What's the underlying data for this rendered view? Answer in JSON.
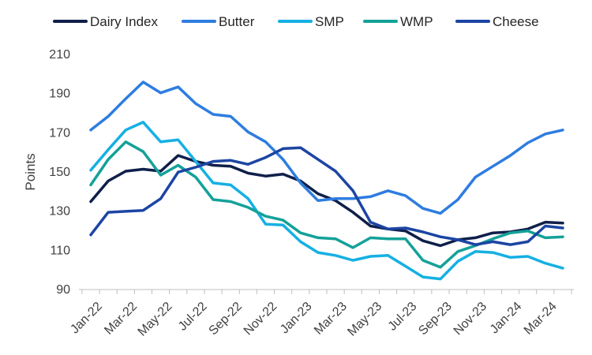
{
  "chart_data": {
    "type": "line",
    "title": "",
    "xlabel": "",
    "ylabel": "Points",
    "ylim": [
      90,
      210
    ],
    "yticks": [
      "90",
      "110",
      "130",
      "150",
      "170",
      "190",
      "210"
    ],
    "grid": false,
    "legend_position": "top",
    "x": [
      "Jan-22",
      "Feb-22",
      "Mar-22",
      "Apr-22",
      "May-22",
      "Jun-22",
      "Jul-22",
      "Aug-22",
      "Sep-22",
      "Oct-22",
      "Nov-22",
      "Dec-22",
      "Jan-23",
      "Feb-23",
      "Mar-23",
      "Apr-23",
      "May-23",
      "Jun-23",
      "Jul-23",
      "Aug-23",
      "Sep-23",
      "Oct-23",
      "Nov-23",
      "Dec-23",
      "Jan-24",
      "Feb-24",
      "Mar-24",
      "Apr-24"
    ],
    "xtick_labels": [
      "Jan-22",
      "Mar-22",
      "May-22",
      "Jul-22",
      "Sep-22",
      "Nov-22",
      "Jan-23",
      "Mar-23",
      "May-23",
      "Jul-23",
      "Sep-23",
      "Nov-23",
      "Jan-24",
      "Mar-24"
    ],
    "series": [
      {
        "name": "Dairy Index",
        "color": "#0f1f4a",
        "values": [
          134.5,
          145,
          150,
          151,
          150,
          158,
          155,
          153,
          152.5,
          149,
          147.5,
          148.5,
          145,
          138.5,
          135,
          129,
          122,
          120.5,
          119.5,
          114.5,
          112,
          115,
          116,
          118.5,
          119,
          120.5,
          124,
          123.5
        ]
      },
      {
        "name": "Butter",
        "color": "#2e7de0",
        "values": [
          171,
          178,
          187,
          195.5,
          190,
          193,
          184.5,
          179,
          178,
          170,
          165,
          156,
          144,
          135,
          136,
          136,
          137,
          140,
          137.5,
          131,
          128.5,
          135.5,
          147,
          152.5,
          158,
          164.5,
          169,
          171
        ]
      },
      {
        "name": "SMP",
        "color": "#15b0e3",
        "values": [
          150.5,
          161,
          171,
          175,
          165,
          166,
          155,
          144,
          143,
          136,
          123,
          122.5,
          114,
          108.5,
          107,
          104.5,
          106.5,
          107,
          101.5,
          96,
          95,
          104,
          109,
          108.5,
          106,
          106.5,
          103,
          100.5
        ]
      },
      {
        "name": "WMP",
        "color": "#14a199",
        "values": [
          143,
          156,
          165,
          160,
          148,
          153,
          147,
          135.5,
          134.5,
          131.5,
          127,
          125,
          118.5,
          116,
          115.5,
          111,
          116,
          115.5,
          115.5,
          104.5,
          101,
          109,
          112,
          115.5,
          118.5,
          119.5,
          116,
          116.5
        ]
      },
      {
        "name": "Cheese",
        "color": "#1c45a3",
        "values": [
          117.5,
          129,
          129.5,
          130,
          136,
          149.5,
          152,
          155,
          155.5,
          153.5,
          157,
          161.5,
          162,
          156,
          150,
          140,
          124,
          120.5,
          121,
          119,
          116.5,
          115,
          112.5,
          114,
          112.5,
          114,
          122,
          121
        ]
      }
    ]
  }
}
